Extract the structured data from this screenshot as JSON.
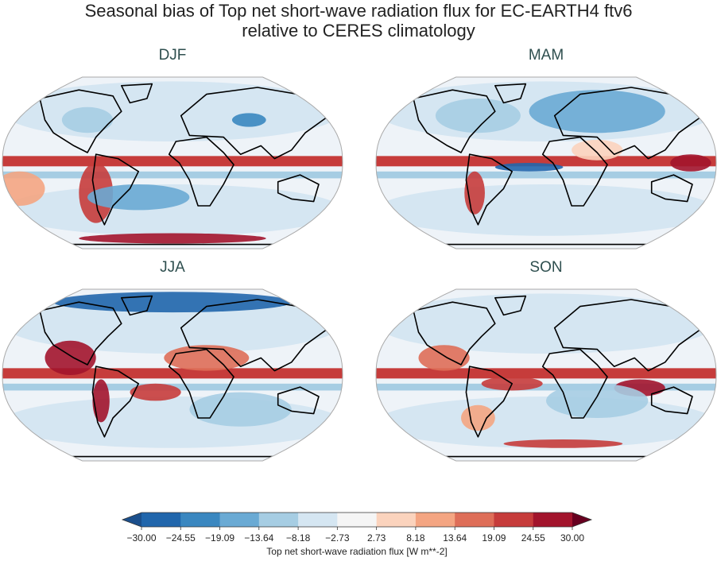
{
  "figure": {
    "title_lines": [
      "Seasonal bias of Top net short-wave radiation flux for EC-EARTH4 ftv6",
      "relative to CERES climatology"
    ],
    "panels": [
      {
        "label": "DJF"
      },
      {
        "label": "MAM"
      },
      {
        "label": "JJA"
      },
      {
        "label": "SON"
      }
    ],
    "colorbar": {
      "label": "Top net short-wave radiation flux [W m**-2]",
      "lim": [
        -30,
        30
      ],
      "ticks": [
        {
          "value": -30,
          "label": "−30.00"
        },
        {
          "value": -24.55,
          "label": "−24.55"
        },
        {
          "value": -19.09,
          "label": "−19.09"
        },
        {
          "value": -13.64,
          "label": "−13.64"
        },
        {
          "value": -8.18,
          "label": "−8.18"
        },
        {
          "value": -2.73,
          "label": "−2.73"
        },
        {
          "value": 2.73,
          "label": "2.73"
        },
        {
          "value": 8.18,
          "label": "8.18"
        },
        {
          "value": 13.64,
          "label": "13.64"
        },
        {
          "value": 19.09,
          "label": "19.09"
        },
        {
          "value": 24.55,
          "label": "24.55"
        },
        {
          "value": 30,
          "label": "30.00"
        }
      ],
      "colors": [
        "#2166ac",
        "#3a87c0",
        "#6aaad4",
        "#a6cde3",
        "#d5e6f2",
        "#f5f5f5",
        "#fbd3bd",
        "#f4a582",
        "#de6e58",
        "#c63c3b",
        "#a2142c"
      ],
      "under_color": "#1b4f8c",
      "over_color": "#67001f"
    }
  }
}
